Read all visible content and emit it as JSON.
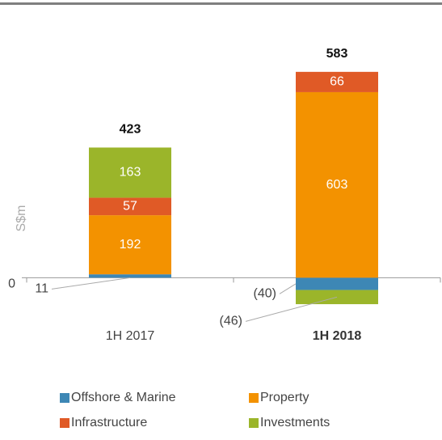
{
  "chart_data": {
    "type": "stacked-bar",
    "ylabel": "S$m",
    "categories": [
      "1H 2017",
      "1H 2018"
    ],
    "bold_categories": [
      false,
      true
    ],
    "series": [
      {
        "name": "Offshore & Marine",
        "color": "#3d87b5",
        "values": [
          11,
          -40
        ],
        "value_labels": [
          "11",
          "(40)"
        ]
      },
      {
        "name": "Property",
        "color": "#f39200",
        "values": [
          192,
          603
        ]
      },
      {
        "name": "Infrastructure",
        "color": "#e05a26",
        "values": [
          57,
          66
        ]
      },
      {
        "name": "Investments",
        "color": "#9bb52a",
        "values": [
          163,
          -46
        ],
        "value_labels": [
          "163",
          "(46)"
        ]
      }
    ],
    "totals": [
      423,
      583
    ],
    "ylim": [
      -120,
      800
    ],
    "yticks": [
      0
    ],
    "grid": false,
    "legend": "bottom"
  }
}
